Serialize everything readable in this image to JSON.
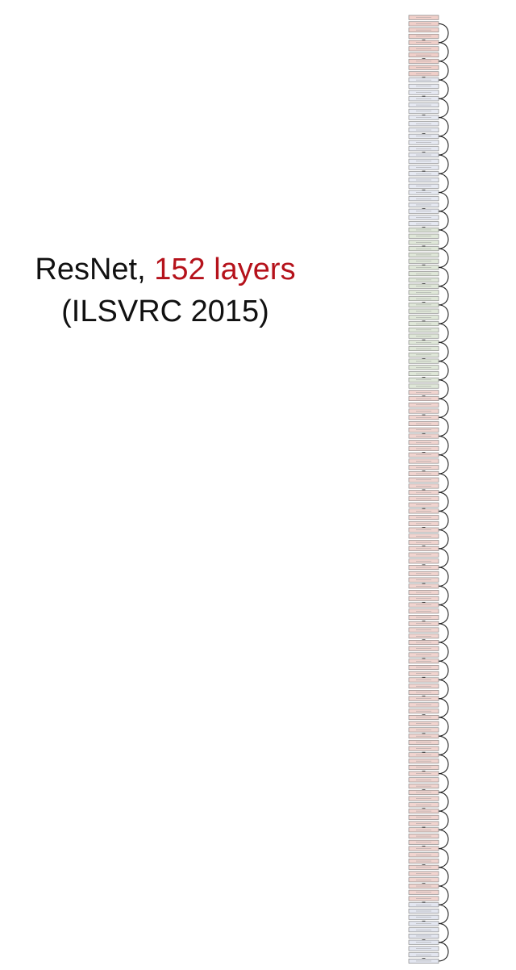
{
  "caption": {
    "model_name": "ResNet,",
    "depth_text": "152 layers",
    "competition": "(ILSVRC 2015)"
  },
  "colors": {
    "text": "#111111",
    "highlight": "#b5121b",
    "layer_stroke": "#7a7a7a",
    "skip_connection": "#222222",
    "stage_fills": [
      "#f0cfc9",
      "#e6e9f2",
      "#dfe7d8",
      "#f1d4cf",
      "#e3e6f0"
    ]
  },
  "diagram": {
    "layer_count": 152,
    "stage_breaks": [
      0,
      10,
      34,
      60,
      142,
      152
    ]
  }
}
